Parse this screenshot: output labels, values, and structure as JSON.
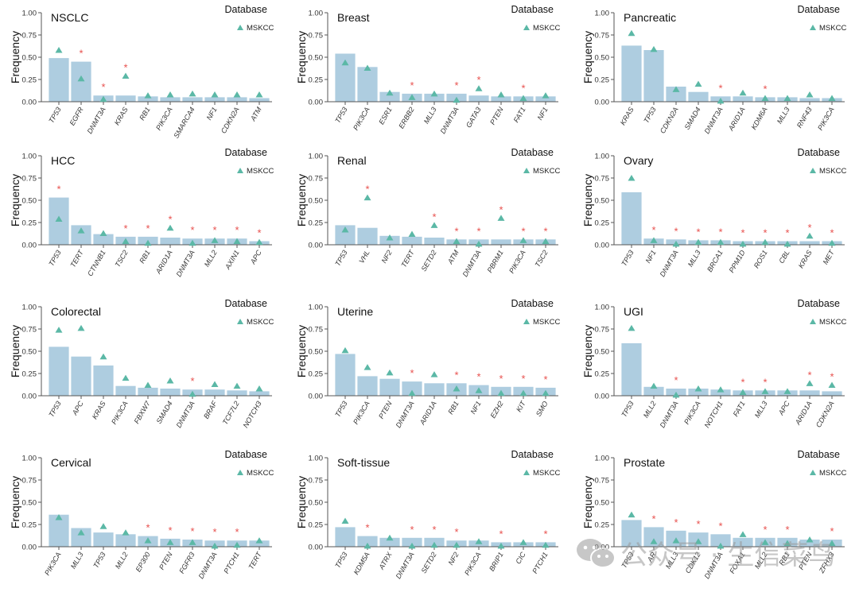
{
  "figure": {
    "watermark_text": "公众号 · 生信菜鸟团",
    "bar_color": "#aecde0",
    "triangle_color": "#5bb8a6",
    "star_color": "#e8524f"
  },
  "chart_data": [
    {
      "type": "bar",
      "title": "NSCLC",
      "xlabel": "",
      "ylabel": "Frequency",
      "ylim": [
        0,
        1
      ],
      "yticks": [
        "0.00",
        "0.25",
        "0.50",
        "0.75",
        "1.00"
      ],
      "legend": {
        "title": "Database",
        "items": [
          "MSKCC"
        ],
        "position": "top-right"
      },
      "categories": [
        "TP53",
        "EGFR",
        "DNMT3A",
        "KRAS",
        "RB1",
        "PIK3CA",
        "SMARCA4",
        "NF1",
        "CDKN2A",
        "ATM"
      ],
      "series": [
        {
          "name": "Cohort",
          "type": "bar",
          "values": [
            0.49,
            0.45,
            0.07,
            0.07,
            0.06,
            0.05,
            0.05,
            0.05,
            0.05,
            0.04
          ]
        },
        {
          "name": "MSKCC",
          "type": "triangle",
          "values": [
            0.58,
            0.26,
            0.03,
            0.29,
            0.07,
            0.08,
            0.09,
            0.08,
            0.08,
            0.08
          ]
        }
      ],
      "significant": [
        false,
        true,
        true,
        true,
        false,
        false,
        false,
        false,
        false,
        false
      ]
    },
    {
      "type": "bar",
      "title": "Breast",
      "xlabel": "",
      "ylabel": "Frequency",
      "ylim": [
        0,
        1
      ],
      "yticks": [
        "0.00",
        "0.25",
        "0.50",
        "0.75",
        "1.00"
      ],
      "legend": {
        "title": "Database",
        "items": [
          "MSKCC"
        ],
        "position": "top-right"
      },
      "categories": [
        "TP53",
        "PIK3CA",
        "ESR1",
        "ERBB2",
        "MLL3",
        "DNMT3A",
        "GATA3",
        "PTEN",
        "FAT1",
        "NF1"
      ],
      "series": [
        {
          "name": "Cohort",
          "type": "bar",
          "values": [
            0.54,
            0.39,
            0.11,
            0.09,
            0.09,
            0.09,
            0.07,
            0.06,
            0.06,
            0.06
          ]
        },
        {
          "name": "MSKCC",
          "type": "triangle",
          "values": [
            0.44,
            0.38,
            0.1,
            0.05,
            0.09,
            0.02,
            0.15,
            0.08,
            0.04,
            0.07
          ]
        }
      ],
      "significant": [
        false,
        false,
        false,
        true,
        false,
        true,
        true,
        false,
        true,
        false
      ]
    },
    {
      "type": "bar",
      "title": "Pancreatic",
      "xlabel": "",
      "ylabel": "Frequency",
      "ylim": [
        0,
        1
      ],
      "yticks": [
        "0.00",
        "0.25",
        "0.50",
        "0.75",
        "1.00"
      ],
      "legend": {
        "title": "Database",
        "items": [
          "MSKCC"
        ],
        "position": "top-right"
      },
      "categories": [
        "KRAS",
        "TP53",
        "CDKN2A",
        "SMAD4",
        "DNMT3A",
        "ARID1A",
        "KDM6A",
        "MLL3",
        "RNF43",
        "PIK3CA"
      ],
      "series": [
        {
          "name": "Cohort",
          "type": "bar",
          "values": [
            0.63,
            0.58,
            0.17,
            0.11,
            0.06,
            0.06,
            0.05,
            0.05,
            0.04,
            0.04
          ]
        },
        {
          "name": "MSKCC",
          "type": "triangle",
          "values": [
            0.77,
            0.59,
            0.14,
            0.2,
            0.01,
            0.1,
            0.04,
            0.04,
            0.08,
            0.04
          ]
        }
      ],
      "significant": [
        false,
        false,
        false,
        false,
        true,
        false,
        true,
        false,
        false,
        false
      ]
    },
    {
      "type": "bar",
      "title": "HCC",
      "xlabel": "",
      "ylabel": "Frequency",
      "ylim": [
        0,
        1
      ],
      "yticks": [
        "0.00",
        "0.25",
        "0.50",
        "0.75",
        "1.00"
      ],
      "legend": {
        "title": "Database",
        "items": [
          "MSKCC"
        ],
        "position": "top-right"
      },
      "categories": [
        "TP53",
        "TERT",
        "CTNNB1",
        "TSC2",
        "RB1",
        "ARID1A",
        "DNMT3A",
        "MLL2",
        "AXIN1",
        "APC"
      ],
      "series": [
        {
          "name": "Cohort",
          "type": "bar",
          "values": [
            0.53,
            0.22,
            0.12,
            0.09,
            0.09,
            0.08,
            0.07,
            0.07,
            0.07,
            0.04
          ]
        },
        {
          "name": "MSKCC",
          "type": "triangle",
          "values": [
            0.29,
            0.16,
            0.13,
            0.04,
            0.02,
            0.19,
            0.02,
            0.05,
            0.04,
            0.03
          ]
        }
      ],
      "significant": [
        true,
        false,
        false,
        true,
        true,
        true,
        true,
        true,
        true,
        true
      ]
    },
    {
      "type": "bar",
      "title": "Renal",
      "xlabel": "",
      "ylabel": "Frequency",
      "ylim": [
        0,
        1
      ],
      "yticks": [
        "0.00",
        "0.25",
        "0.50",
        "0.75",
        "1.00"
      ],
      "legend": {
        "title": "Database",
        "items": [
          "MSKCC"
        ],
        "position": "top-right"
      },
      "categories": [
        "TP53",
        "VHL",
        "NF2",
        "TERT",
        "SETD2",
        "ATM",
        "DNMT3A",
        "PBRM1",
        "PIK3CA",
        "TSC2"
      ],
      "series": [
        {
          "name": "Cohort",
          "type": "bar",
          "values": [
            0.22,
            0.19,
            0.1,
            0.09,
            0.08,
            0.06,
            0.06,
            0.06,
            0.06,
            0.06
          ]
        },
        {
          "name": "MSKCC",
          "type": "triangle",
          "values": [
            0.17,
            0.53,
            0.08,
            0.12,
            0.22,
            0.04,
            0.01,
            0.3,
            0.05,
            0.04
          ]
        }
      ],
      "significant": [
        false,
        true,
        false,
        false,
        true,
        true,
        true,
        true,
        true,
        true
      ]
    },
    {
      "type": "bar",
      "title": "Ovary",
      "xlabel": "",
      "ylabel": "Frequency",
      "ylim": [
        0,
        1
      ],
      "yticks": [
        "0.00",
        "0.25",
        "0.50",
        "0.75",
        "1.00"
      ],
      "legend": {
        "title": "Database",
        "items": [
          "MSKCC"
        ],
        "position": "top-right"
      },
      "categories": [
        "TP53",
        "NF1",
        "DNMT3A",
        "MLL3",
        "BRCA1",
        "PPM1D",
        "ROS1",
        "CBL",
        "KRAS",
        "MET"
      ],
      "series": [
        {
          "name": "Cohort",
          "type": "bar",
          "values": [
            0.59,
            0.07,
            0.06,
            0.05,
            0.05,
            0.04,
            0.04,
            0.04,
            0.04,
            0.04
          ]
        },
        {
          "name": "MSKCC",
          "type": "triangle",
          "values": [
            0.75,
            0.05,
            0.01,
            0.03,
            0.03,
            0.01,
            0.03,
            0.01,
            0.1,
            0.02
          ]
        }
      ],
      "significant": [
        false,
        true,
        true,
        true,
        true,
        true,
        true,
        true,
        true,
        true
      ]
    },
    {
      "type": "bar",
      "title": "Colorectal",
      "xlabel": "",
      "ylabel": "Frequency",
      "ylim": [
        0,
        1
      ],
      "yticks": [
        "0.00",
        "0.25",
        "0.50",
        "0.75",
        "1.00"
      ],
      "legend": {
        "title": "Database",
        "items": [
          "MSKCC"
        ],
        "position": "top-right"
      },
      "categories": [
        "TP53",
        "APC",
        "KRAS",
        "PIK3CA",
        "FBXW7",
        "SMAD4",
        "DNMT3A",
        "BRAF",
        "TCF7L2",
        "NOTCH3"
      ],
      "series": [
        {
          "name": "Cohort",
          "type": "bar",
          "values": [
            0.55,
            0.44,
            0.34,
            0.11,
            0.09,
            0.08,
            0.07,
            0.07,
            0.06,
            0.05
          ]
        },
        {
          "name": "MSKCC",
          "type": "triangle",
          "values": [
            0.74,
            0.76,
            0.44,
            0.2,
            0.12,
            0.17,
            0.02,
            0.13,
            0.11,
            0.08
          ]
        }
      ],
      "significant": [
        false,
        false,
        false,
        false,
        false,
        false,
        true,
        false,
        false,
        false
      ]
    },
    {
      "type": "bar",
      "title": "Uterine",
      "xlabel": "",
      "ylabel": "Frequency",
      "ylim": [
        0,
        1
      ],
      "yticks": [
        "0.00",
        "0.25",
        "0.50",
        "0.75",
        "1.00"
      ],
      "legend": {
        "title": "Database",
        "items": [
          "MSKCC"
        ],
        "position": "top-right"
      },
      "categories": [
        "TP53",
        "PIK3CA",
        "PTEN",
        "DNMT3A",
        "ARID1A",
        "RB1",
        "NF1",
        "EZH2",
        "KIT",
        "SMO"
      ],
      "series": [
        {
          "name": "Cohort",
          "type": "bar",
          "values": [
            0.47,
            0.22,
            0.19,
            0.16,
            0.14,
            0.14,
            0.12,
            0.1,
            0.1,
            0.09
          ]
        },
        {
          "name": "MSKCC",
          "type": "triangle",
          "values": [
            0.51,
            0.32,
            0.26,
            0.03,
            0.24,
            0.08,
            0.06,
            0.03,
            0.03,
            0.03
          ]
        }
      ],
      "significant": [
        false,
        false,
        false,
        true,
        false,
        true,
        true,
        true,
        true,
        true
      ]
    },
    {
      "type": "bar",
      "title": "UGI",
      "xlabel": "",
      "ylabel": "Frequency",
      "ylim": [
        0,
        1
      ],
      "yticks": [
        "0.00",
        "0.25",
        "0.50",
        "0.75",
        "1.00"
      ],
      "legend": {
        "title": "Database",
        "items": [
          "MSKCC"
        ],
        "position": "top-right"
      },
      "categories": [
        "TP53",
        "MLL2",
        "DNMT3A",
        "PIK3CA",
        "NOTCH1",
        "FAT1",
        "MLL3",
        "APC",
        "ARID1A",
        "CDKN2A"
      ],
      "series": [
        {
          "name": "Cohort",
          "type": "bar",
          "values": [
            0.59,
            0.1,
            0.08,
            0.08,
            0.07,
            0.06,
            0.06,
            0.06,
            0.06,
            0.05
          ]
        },
        {
          "name": "MSKCC",
          "type": "triangle",
          "values": [
            0.76,
            0.11,
            0.01,
            0.08,
            0.07,
            0.04,
            0.05,
            0.05,
            0.14,
            0.12
          ]
        }
      ],
      "significant": [
        false,
        false,
        true,
        false,
        false,
        true,
        true,
        false,
        true,
        true
      ]
    },
    {
      "type": "bar",
      "title": "Cervical",
      "xlabel": "",
      "ylabel": "Frequency",
      "ylim": [
        0,
        1
      ],
      "yticks": [
        "0.00",
        "0.25",
        "0.50",
        "0.75",
        "1.00"
      ],
      "legend": {
        "title": "Database",
        "items": [
          "MSKCC"
        ],
        "position": "top-right"
      },
      "categories": [
        "PIK3CA",
        "MLL3",
        "TP53",
        "MLL2",
        "EP300",
        "PTEN",
        "FGFR3",
        "DNMT3A",
        "PTCH1",
        "TERT"
      ],
      "series": [
        {
          "name": "Cohort",
          "type": "bar",
          "values": [
            0.36,
            0.21,
            0.16,
            0.14,
            0.12,
            0.09,
            0.08,
            0.07,
            0.07,
            0.07
          ]
        },
        {
          "name": "MSKCC",
          "type": "triangle",
          "values": [
            0.33,
            0.16,
            0.23,
            0.16,
            0.07,
            0.05,
            0.05,
            0.01,
            0.02,
            0.07
          ]
        }
      ],
      "significant": [
        false,
        false,
        false,
        false,
        true,
        true,
        true,
        true,
        true,
        false
      ]
    },
    {
      "type": "bar",
      "title": "Soft-tissue",
      "xlabel": "",
      "ylabel": "Frequency",
      "ylim": [
        0,
        1
      ],
      "yticks": [
        "0.00",
        "0.25",
        "0.50",
        "0.75",
        "1.00"
      ],
      "legend": {
        "title": "Database",
        "items": [
          "MSKCC"
        ],
        "position": "top-right"
      },
      "categories": [
        "TP53",
        "KDM5A",
        "ATRX",
        "DNMT3A",
        "SETD2",
        "NF2",
        "PIK3CA",
        "BRIP1",
        "CIC",
        "PTCH1"
      ],
      "series": [
        {
          "name": "Cohort",
          "type": "bar",
          "values": [
            0.22,
            0.12,
            0.1,
            0.1,
            0.1,
            0.07,
            0.07,
            0.05,
            0.05,
            0.05
          ]
        },
        {
          "name": "MSKCC",
          "type": "triangle",
          "values": [
            0.29,
            0.01,
            0.1,
            0.01,
            0.02,
            0.02,
            0.06,
            0.01,
            0.05,
            0.02
          ]
        }
      ],
      "significant": [
        false,
        true,
        false,
        true,
        true,
        true,
        false,
        true,
        false,
        true
      ]
    },
    {
      "type": "bar",
      "title": "Prostate",
      "xlabel": "",
      "ylabel": "Frequency",
      "ylim": [
        0,
        1
      ],
      "yticks": [
        "0.00",
        "0.25",
        "0.50",
        "0.75",
        "1.00"
      ],
      "legend": {
        "title": "Database",
        "items": [
          "MSKCC"
        ],
        "position": "top-right"
      },
      "categories": [
        "TP53",
        "AR",
        "MLL3",
        "CDK12",
        "DNMT3A",
        "FOXA1",
        "MLL2",
        "RB1",
        "PTEN",
        "ZFHX3"
      ],
      "series": [
        {
          "name": "Cohort",
          "type": "bar",
          "values": [
            0.3,
            0.22,
            0.18,
            0.16,
            0.14,
            0.1,
            0.1,
            0.1,
            0.08,
            0.08
          ]
        },
        {
          "name": "MSKCC",
          "type": "triangle",
          "values": [
            0.36,
            0.06,
            0.07,
            0.06,
            0.01,
            0.14,
            0.05,
            0.04,
            0.08,
            0.04
          ]
        }
      ],
      "significant": [
        false,
        true,
        true,
        true,
        true,
        false,
        true,
        true,
        false,
        true
      ]
    }
  ]
}
